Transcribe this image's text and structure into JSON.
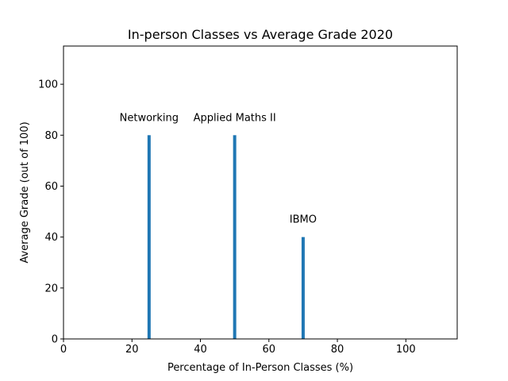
{
  "chart_data": {
    "type": "bar",
    "title": "In-person Classes vs Average Grade 2020",
    "xlabel": "Percentage of In-Person Classes (%)",
    "ylabel": "Average Grade (out of 100)",
    "xlim": [
      0,
      115
    ],
    "ylim": [
      0,
      115
    ],
    "xticks": [
      0,
      20,
      40,
      60,
      80,
      100
    ],
    "yticks": [
      0,
      20,
      40,
      60,
      80,
      100
    ],
    "grid": false,
    "bar_color": "#1f77b4",
    "points": [
      {
        "label": "Networking",
        "x": 25,
        "y": 80
      },
      {
        "label": "Applied Maths II",
        "x": 50,
        "y": 80
      },
      {
        "label": "IBMO",
        "x": 70,
        "y": 40
      }
    ]
  }
}
